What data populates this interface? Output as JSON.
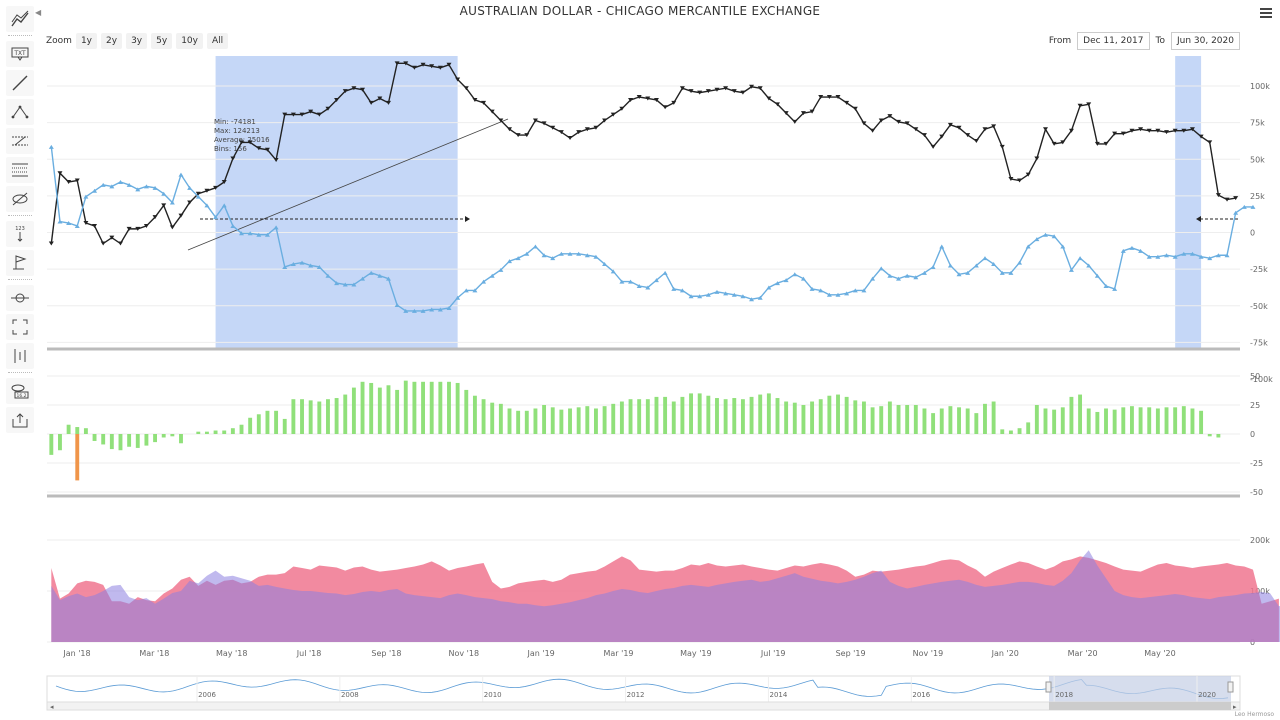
{
  "title": "AUSTRALIAN DOLLAR - CHICAGO MERCANTILE EXCHANGE",
  "zoom": {
    "label": "Zoom",
    "buttons": [
      "1y",
      "2y",
      "3y",
      "5y",
      "10y",
      "All"
    ]
  },
  "range": {
    "from_label": "From",
    "from_value": "Dec 11, 2017",
    "to_label": "To",
    "to_value": "Jun 30, 2020"
  },
  "credit": "Leo Hermoso",
  "stats_tooltip": [
    "Min: -74181",
    "Max: 124213",
    "Average: 25016",
    "Bins: 156"
  ],
  "toolbar_icons": [
    "chart-lines-icon",
    "text-annotation-icon",
    "line-draw-icon",
    "pitchfork-icon",
    "parallel-channel-icon",
    "fibonacci-icon",
    "hide-icon",
    "measure-icon",
    "flag-icon",
    "crosshair-icon",
    "fullscreen-icon",
    "indicators-icon",
    "price-indicator-icon",
    "save-icon"
  ],
  "colors": {
    "net_dark": "#222222",
    "net_blue": "#6aaee0",
    "highlight": "#c5d7f7",
    "bar_pos": "#90e07a",
    "bar_neg": "#f0954a",
    "area_pink": "#f0758f",
    "area_purple": "#8d80e0",
    "navigator": "#5b9bd5"
  },
  "chart_data": [
    {
      "type": "line",
      "xlabel": "",
      "ylabel": "",
      "ylim": [
        -100000,
        100000
      ],
      "y_ticks": [
        "100k",
        "75k",
        "50k",
        "25k",
        "0",
        "-25k",
        "-50k",
        "-75k",
        "-100k"
      ],
      "x_ticks": [
        "Jan '18",
        "Mar '18",
        "May '18",
        "Jul '18",
        "Sep '18",
        "Nov '18",
        "Jan '19",
        "Mar '19",
        "May '19",
        "Jul '19",
        "Sep '19",
        "Nov '19",
        "Jan '20",
        "Mar '20",
        "May '20"
      ],
      "x_start": "2017-12-12",
      "step_days": 7,
      "highlight_ranges": [
        [
          "2018-04-24",
          "2018-11-06"
        ],
        [
          "2020-06-09",
          "2020-06-30"
        ]
      ],
      "series": [
        {
          "values": [
            -28000,
            20000,
            14000,
            15000,
            -14000,
            -16000,
            -28000,
            -24000,
            -28000,
            -18000,
            -18000,
            -16000,
            -10000,
            -2000,
            -17000,
            -9000,
            0,
            6000,
            8000,
            10000,
            14000,
            30000,
            41000,
            41000,
            37000,
            36000,
            29000,
            60000,
            60000,
            60000,
            62000,
            60000,
            64000,
            70000,
            76000,
            78000,
            77000,
            68000,
            71000,
            68000,
            95000,
            95000,
            92000,
            94000,
            93000,
            92000,
            94000,
            84000,
            78000,
            70000,
            68000,
            62000,
            56000,
            50000,
            46000,
            46000,
            56000,
            54000,
            51000,
            48000,
            44000,
            48000,
            50000,
            51000,
            56000,
            60000,
            64000,
            70000,
            72000,
            71000,
            70000,
            65000,
            68000,
            78000,
            76000,
            75000,
            76000,
            77000,
            78000,
            76000,
            75000,
            79000,
            78000,
            71000,
            67000,
            61000,
            55000,
            61000,
            62000,
            72000,
            72000,
            72000,
            68000,
            64000,
            54000,
            49000,
            56000,
            59000,
            55000,
            54000,
            50000,
            46000,
            38000,
            45000,
            53000,
            51000,
            46000,
            42000,
            50000,
            52000,
            38000,
            16000,
            15000,
            19000,
            30000,
            50000,
            40000,
            41000,
            49000,
            66000,
            67000,
            40000,
            40000,
            47000,
            47000,
            49000,
            50000,
            49000,
            49000,
            48000,
            49000,
            49000,
            50000,
            45000,
            41000,
            5000,
            2000,
            3000
          ]
        },
        {
          "values": [
            38000,
            -13000,
            -14000,
            -16000,
            4000,
            8000,
            12000,
            11000,
            14000,
            12000,
            9000,
            11000,
            10000,
            6000,
            0,
            19000,
            10000,
            4000,
            -2000,
            -10000,
            -2000,
            -16000,
            -21000,
            -21000,
            -22000,
            -22000,
            -17000,
            -44000,
            -42000,
            -41000,
            -43000,
            -44000,
            -50000,
            -55000,
            -56000,
            -56000,
            -52000,
            -48000,
            -50000,
            -52000,
            -70000,
            -74000,
            -74000,
            -74000,
            -73000,
            -73000,
            -72000,
            -65000,
            -60000,
            -60000,
            -54000,
            -50000,
            -46000,
            -40000,
            -38000,
            -35000,
            -30000,
            -36000,
            -38000,
            -35000,
            -35000,
            -35000,
            -36000,
            -37000,
            -42000,
            -47000,
            -54000,
            -54000,
            -57000,
            -58000,
            -53000,
            -48000,
            -59000,
            -60000,
            -64000,
            -64000,
            -63000,
            -61000,
            -62000,
            -63000,
            -64000,
            -66000,
            -65000,
            -58000,
            -55000,
            -53000,
            -49000,
            -52000,
            -59000,
            -60000,
            -63000,
            -63000,
            -62000,
            -60000,
            -60000,
            -52000,
            -45000,
            -50000,
            -52000,
            -50000,
            -51000,
            -48000,
            -44000,
            -30000,
            -43000,
            -49000,
            -48000,
            -43000,
            -38000,
            -42000,
            -48000,
            -48000,
            -41000,
            -30000,
            -25000,
            -22000,
            -23000,
            -30000,
            -46000,
            -38000,
            -43000,
            -50000,
            -57000,
            -59000,
            -33000,
            -31000,
            -33000,
            -37000,
            -37000,
            -36000,
            -37000,
            -35000,
            -35000,
            -37000,
            -38000,
            -36000,
            -36000,
            -7000,
            -3000,
            -3000
          ]
        }
      ]
    },
    {
      "type": "bar",
      "ylim": [
        -50,
        50
      ],
      "y_ticks": [
        "50",
        "25",
        "0",
        "-25",
        "-50"
      ],
      "values": [
        -18,
        -14,
        8,
        6,
        5,
        -6,
        -9,
        -13,
        -14,
        -11,
        -12,
        -10,
        -7,
        -3,
        -2,
        -8,
        0,
        2,
        2,
        3,
        3,
        5,
        8,
        14,
        17,
        20,
        20,
        13,
        30,
        30,
        29,
        28,
        30,
        31,
        34,
        40,
        45,
        44,
        40,
        42,
        38,
        46,
        45,
        45,
        45,
        45,
        45,
        44,
        38,
        33,
        30,
        27,
        26,
        22,
        20,
        20,
        22,
        25,
        23,
        21,
        22,
        23,
        24,
        22,
        24,
        26,
        28,
        30,
        30,
        30,
        32,
        32,
        28,
        32,
        35,
        35,
        33,
        31,
        30,
        31,
        30,
        32,
        34,
        35,
        31,
        28,
        27,
        25,
        28,
        30,
        33,
        34,
        32,
        29,
        28,
        23,
        24,
        28,
        25,
        25,
        25,
        22,
        18,
        22,
        24,
        23,
        22,
        18,
        26,
        28,
        4,
        3,
        5,
        10,
        25,
        22,
        21,
        23,
        32,
        34,
        22,
        19,
        22,
        21,
        23,
        24,
        23,
        23,
        22,
        23,
        23,
        24,
        22,
        20,
        -2,
        -3
      ],
      "negative_spike": {
        "index": 3,
        "value": -40
      }
    },
    {
      "type": "area",
      "ylim": [
        0,
        230000
      ],
      "y_ticks": [
        "200k",
        "100k",
        "0"
      ],
      "series": [
        {
          "values": [
            145000,
            85000,
            95000,
            115000,
            120000,
            118000,
            112000,
            80000,
            80000,
            75000,
            88000,
            82000,
            80000,
            95000,
            105000,
            122000,
            128000,
            110000,
            120000,
            112000,
            120000,
            122000,
            115000,
            118000,
            128000,
            132000,
            132000,
            135000,
            148000,
            145000,
            142000,
            150000,
            148000,
            146000,
            140000,
            146000,
            148000,
            142000,
            138000,
            140000,
            142000,
            145000,
            148000,
            152000,
            158000,
            150000,
            140000,
            145000,
            148000,
            152000,
            155000,
            118000,
            105000,
            108000,
            115000,
            118000,
            120000,
            122000,
            118000,
            122000,
            132000,
            135000,
            138000,
            140000,
            148000,
            158000,
            168000,
            160000,
            142000,
            140000,
            138000,
            140000,
            140000,
            145000,
            152000,
            150000,
            155000,
            150000,
            148000,
            150000,
            152000,
            148000,
            145000,
            142000,
            140000,
            145000,
            150000,
            148000,
            152000,
            155000,
            152000,
            148000,
            140000,
            128000,
            132000,
            140000,
            138000,
            140000,
            142000,
            145000,
            148000,
            150000,
            155000,
            160000,
            162000,
            160000,
            150000,
            142000,
            128000,
            138000,
            145000,
            152000,
            158000,
            155000,
            148000,
            142000,
            148000,
            158000,
            162000,
            168000,
            165000,
            160000,
            155000,
            148000,
            142000,
            140000,
            138000,
            145000,
            152000,
            155000,
            150000,
            148000,
            145000,
            148000,
            150000,
            152000,
            155000,
            150000,
            148000,
            142000,
            75000,
            80000,
            85000
          ]
        },
        {
          "values": [
            110000,
            82000,
            90000,
            95000,
            88000,
            92000,
            100000,
            110000,
            112000,
            88000,
            82000,
            86000,
            75000,
            85000,
            96000,
            100000,
            120000,
            115000,
            130000,
            140000,
            128000,
            130000,
            125000,
            120000,
            110000,
            112000,
            108000,
            105000,
            102000,
            100000,
            100000,
            98000,
            96000,
            95000,
            92000,
            94000,
            98000,
            100000,
            98000,
            102000,
            104000,
            95000,
            92000,
            90000,
            88000,
            86000,
            92000,
            95000,
            92000,
            88000,
            86000,
            84000,
            80000,
            78000,
            75000,
            75000,
            72000,
            70000,
            72000,
            75000,
            78000,
            82000,
            86000,
            92000,
            95000,
            100000,
            104000,
            102000,
            98000,
            96000,
            100000,
            104000,
            106000,
            110000,
            112000,
            110000,
            108000,
            112000,
            115000,
            118000,
            120000,
            122000,
            118000,
            120000,
            125000,
            130000,
            135000,
            128000,
            124000,
            120000,
            118000,
            115000,
            118000,
            122000,
            128000,
            135000,
            140000,
            118000,
            110000,
            105000,
            108000,
            112000,
            115000,
            118000,
            120000,
            122000,
            118000,
            112000,
            108000,
            110000,
            112000,
            115000,
            118000,
            118000,
            116000,
            112000,
            110000,
            120000,
            135000,
            160000,
            180000,
            150000,
            125000,
            100000,
            92000,
            88000,
            86000,
            88000,
            90000,
            92000,
            94000,
            92000,
            88000,
            86000,
            84000,
            88000,
            90000,
            92000,
            95000,
            96000,
            98000,
            95000,
            70000,
            75000,
            80000,
            85000
          ]
        }
      ]
    },
    {
      "type": "line",
      "x_ticks": [
        "2006",
        "2008",
        "2010",
        "2012",
        "2014",
        "2016",
        "2018",
        "2020"
      ]
    }
  ]
}
